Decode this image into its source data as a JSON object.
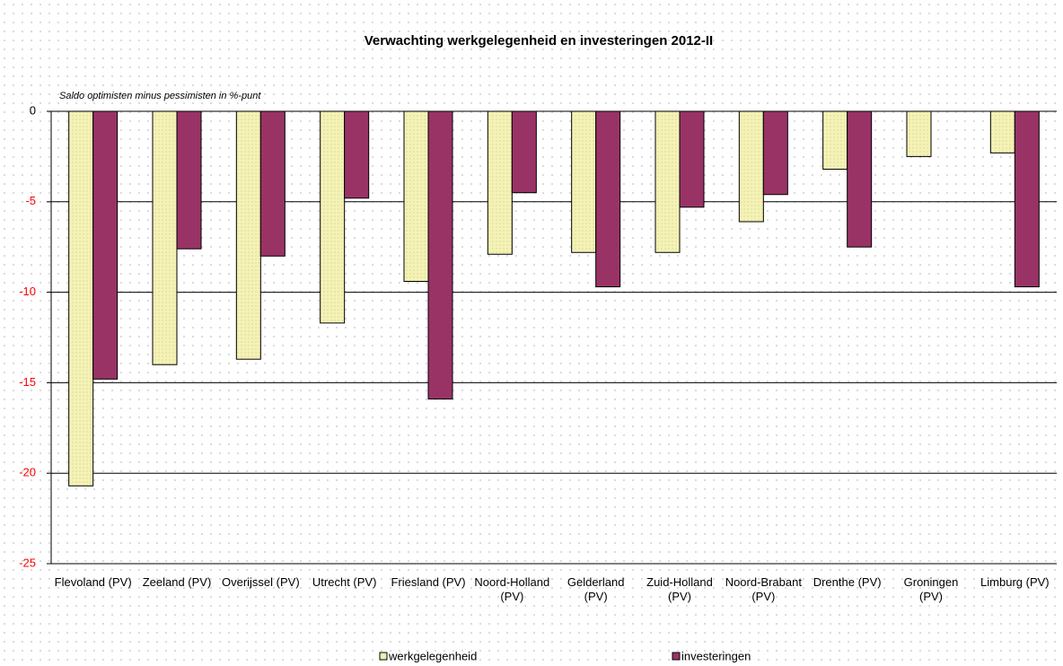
{
  "chart_data": {
    "type": "bar",
    "title": "Verwachting werkgelegenheid en investeringen 2012-II",
    "subtitle": "Saldo optimisten minus pessimisten in %-punt",
    "categories": [
      "Flevoland (PV)",
      "Zeeland (PV)",
      "Overijssel (PV)",
      "Utrecht (PV)",
      "Friesland (PV)",
      "Noord-Holland (PV)",
      "Gelderland (PV)",
      "Zuid-Holland (PV)",
      "Noord-Brabant (PV)",
      "Drenthe (PV)",
      "Groningen (PV)",
      "Limburg (PV)"
    ],
    "series": [
      {
        "name": "werkgelegenheid",
        "color": "#f4f2b4",
        "values": [
          -20.7,
          -14.0,
          -13.7,
          -11.7,
          -9.4,
          -7.9,
          -7.8,
          -7.8,
          -6.1,
          -3.2,
          -2.5,
          -2.3
        ]
      },
      {
        "name": "investeringen",
        "color": "#993366",
        "values": [
          -14.8,
          -7.6,
          -8.0,
          -4.8,
          -15.9,
          -4.5,
          -9.7,
          -5.3,
          -4.6,
          -7.5,
          0,
          -9.7
        ]
      }
    ],
    "ylim": [
      -25,
      0
    ],
    "yticks": [
      0,
      -5,
      -10,
      -15,
      -20,
      -25
    ],
    "grid": true,
    "negative_tick_color": "#ff0000",
    "legend": "bottom"
  }
}
